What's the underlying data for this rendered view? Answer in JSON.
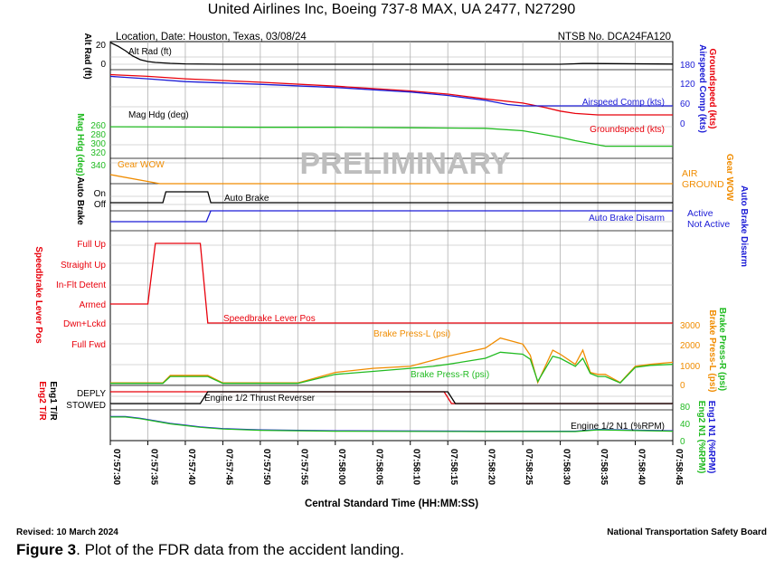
{
  "header": {
    "title": "United Airlines Inc, Boeing 737-8 MAX, UA 2477, N27290",
    "location": "Location, Date: Houston, Texas, 03/08/24",
    "ntsb_no": "NTSB No. DCA24FA120",
    "watermark": "PRELIMINARY"
  },
  "footer": {
    "revised": "Revised: 10 March 2024",
    "org": "National Transportation Safety Board",
    "figure_label": "Figure 3",
    "figure_caption": ".  Plot of the FDR data from the accident landing."
  },
  "colors": {
    "black": "#000000",
    "red": "#e8000b",
    "blue": "#1c1cd6",
    "green": "#22bb22",
    "orange": "#f08c00",
    "grid": "#b0b0b0"
  },
  "chart_data": {
    "type": "line",
    "xlabel": "Central Standard Time (HH:MM:SS)",
    "x_ticks": [
      "07:57:30",
      "07:57:35",
      "07:57:40",
      "07:57:45",
      "07:57:50",
      "07:57:55",
      "07:58:00",
      "07:58:05",
      "07:58:10",
      "07:58:15",
      "07:58:20",
      "07:58:25",
      "07:58:30",
      "07:58:35",
      "07:58:40",
      "07:58:45"
    ],
    "x_range_seconds_after_075730": [
      0,
      75
    ],
    "panels": {
      "alt_rad": {
        "ylabel": "Alt Rad (ft)",
        "ticks": [
          "20",
          "0"
        ],
        "ylim": [
          0,
          20
        ],
        "series": [
          {
            "name": "Alt Rad (ft)",
            "color": "black",
            "x": [
              0,
              1,
              2,
              3,
              4,
              5,
              6,
              8,
              10,
              15,
              30,
              60,
              63,
              64,
              75
            ],
            "y": [
              24,
              20,
              15,
              9,
              5,
              3,
              2,
              1,
              0.4,
              0,
              0,
              0,
              0.8,
              0.8,
              0.2
            ]
          }
        ]
      },
      "speeds": {
        "ylabel_left": "Mag Hdg (deg)",
        "ylabel_right": "Groundspeed (kts)",
        "ylabel_right2": "Airspeed Comp (kts)",
        "right_ticks": [
          "180",
          "120",
          "60",
          "0"
        ],
        "ylim": [
          0,
          180
        ],
        "series": [
          {
            "name": "Groundspeed (kts)",
            "color": "red",
            "x": [
              0,
              5,
              10,
              15,
              20,
              30,
              40,
              45,
              50,
              55,
              58,
              60,
              62,
              65,
              75
            ],
            "y": [
              150,
              145,
              138,
              133,
              128,
              117,
              103,
              94,
              80,
              68,
              55,
              45,
              38,
              34,
              34
            ]
          },
          {
            "name": "Airspeed Comp (kts)",
            "color": "blue",
            "x": [
              0,
              5,
              10,
              15,
              20,
              30,
              40,
              45,
              50,
              53,
              55,
              60,
              75
            ],
            "y": [
              145,
              138,
              130,
              126,
              122,
              113,
              100,
              90,
              76,
              64,
              60,
              60,
              60
            ]
          }
        ]
      },
      "mag_hdg": {
        "ylabel": "Mag Hdg (deg)",
        "ticks": [
          "260",
          "280",
          "300",
          "320",
          "340"
        ],
        "ylim": [
          260,
          340
        ],
        "series": [
          {
            "name": "Mag Hdg (deg)",
            "color": "green",
            "x": [
              0,
              10,
              20,
              30,
              40,
              50,
              55,
              60,
              62,
              66,
              70,
              75
            ],
            "y": [
              262,
              262.5,
              263,
              263,
              264,
              265,
              270,
              283,
              290,
              301,
              301,
              301
            ]
          }
        ]
      },
      "gear_wow": {
        "ylabel": "Gear WOW",
        "states": [
          "AIR",
          "GROUND"
        ],
        "series": [
          {
            "name": "Gear WOW",
            "color": "orange",
            "x": [
              0,
              6.6,
              75
            ],
            "state": [
              "AIR",
              "GROUND",
              "GROUND"
            ]
          }
        ]
      },
      "auto_brake": {
        "ylabel": "Auto Brake",
        "states": [
          "On",
          "Off"
        ],
        "series": [
          {
            "name": "Auto Brake",
            "color": "black",
            "x": [
              0,
              7,
              7.4,
              13,
              13.4,
              75
            ],
            "state": [
              "Off",
              "Off",
              "On",
              "On",
              "Off",
              "Off"
            ]
          }
        ]
      },
      "auto_brake_disarm": {
        "ylabel": "Auto Brake Disarm",
        "states": [
          "Active",
          "Not Active"
        ],
        "series": [
          {
            "name": "Auto Brake Disarm",
            "color": "blue",
            "x": [
              0,
              12.8,
              13.4,
              75
            ],
            "state": [
              "Not Active",
              "Not Active",
              "Active",
              "Active"
            ]
          }
        ]
      },
      "speedbrake": {
        "ylabel": "Speedbrake Lever Pos",
        "states": [
          "Full Up",
          "Straight Up",
          "In-Flt Detent",
          "Armed",
          "Dwn+Lckd",
          "Full Fwd"
        ],
        "series": [
          {
            "name": "Speedbrake Lever Pos",
            "color": "red",
            "x": [
              0,
              5,
              6,
              12,
              13,
              75
            ],
            "state": [
              "Armed",
              "Armed",
              "Full Up",
              "Full Up",
              "Dwn+Lckd",
              "Dwn+Lckd"
            ]
          }
        ]
      },
      "brake_press": {
        "ylabel_right": "Brake Press-L (psi)",
        "ylabel_right2": "Brake Press-R (psi)",
        "ticks": [
          "3000",
          "2000",
          "1000",
          "0"
        ],
        "ylim": [
          0,
          3000
        ],
        "series": [
          {
            "name": "Brake Press-L (psi)",
            "color": "orange",
            "x": [
              0,
              7,
              8,
              13,
              15,
              25,
              30,
              35,
              40,
              43,
              45,
              50,
              52,
              55,
              56,
              57,
              59,
              60,
              62,
              63,
              64,
              65,
              66,
              68,
              70,
              72,
              75
            ],
            "y": [
              80,
              80,
              450,
              450,
              80,
              80,
              600,
              800,
              900,
              1200,
              1400,
              1800,
              2300,
              2000,
              1450,
              100,
              1700,
              1500,
              1000,
              1700,
              600,
              500,
              500,
              100,
              900,
              1000,
              1100
            ]
          },
          {
            "name": "Brake Press-R (psi)",
            "color": "green",
            "x": [
              0,
              7,
              8,
              13,
              15,
              25,
              30,
              35,
              40,
              43,
              45,
              50,
              52,
              55,
              56,
              57,
              59,
              60,
              62,
              63,
              64,
              65,
              66,
              68,
              70,
              72,
              75
            ],
            "y": [
              60,
              60,
              400,
              400,
              60,
              60,
              500,
              650,
              800,
              900,
              1000,
              1300,
              1600,
              1500,
              1250,
              150,
              1400,
              1300,
              900,
              1300,
              550,
              400,
              400,
              80,
              850,
              950,
              1000
            ]
          }
        ]
      },
      "thrust_reverser": {
        "ylabel": "Eng1 T/R",
        "ylabel2": "Eng2 T/R",
        "states": [
          "DEPLY",
          "STOWED"
        ],
        "series": [
          {
            "name": "Eng1 T/R",
            "color": "black",
            "x": [
              0,
              12,
              13,
              45,
              46,
              75
            ],
            "state": [
              "STOWED",
              "STOWED",
              "DEPLY",
              "DEPLY",
              "STOWED",
              "STOWED"
            ]
          },
          {
            "name": "Eng2 T/R",
            "color": "red",
            "x": [
              0,
              44.5,
              45.5,
              75
            ],
            "state": [
              "DEPLY",
              "DEPLY",
              "STOWED",
              "STOWED"
            ]
          }
        ],
        "annotation": "Engine 1/2 Thrust Reverser"
      },
      "n1": {
        "ylabel_right": "Eng1 N1 (%RPM)",
        "ylabel_right2": "Eng2 N1 (%RPM)",
        "ticks": [
          "80",
          "40",
          "0"
        ],
        "ylim": [
          0,
          80
        ],
        "series": [
          {
            "name": "Eng1 N1 (%RPM)",
            "color": "blue",
            "x": [
              0,
              2,
              4,
              6,
              8,
              10,
              12,
              15,
              20,
              30,
              50,
              62,
              65,
              75
            ],
            "y": [
              56,
              56,
              52,
              46,
              40,
              36,
              32,
              28,
              25,
              23,
              22,
              22,
              26,
              23
            ]
          },
          {
            "name": "Eng2 N1 (%RPM)",
            "color": "green",
            "x": [
              0,
              2,
              4,
              6,
              8,
              10,
              12,
              15,
              20,
              30,
              50,
              62,
              65,
              75
            ],
            "y": [
              55,
              55,
              51,
              45,
              39,
              35,
              31,
              27,
              24,
              22,
              21,
              21,
              25,
              22
            ]
          }
        ],
        "annotation": "Engine 1/2 N1 (%RPM)"
      }
    }
  }
}
